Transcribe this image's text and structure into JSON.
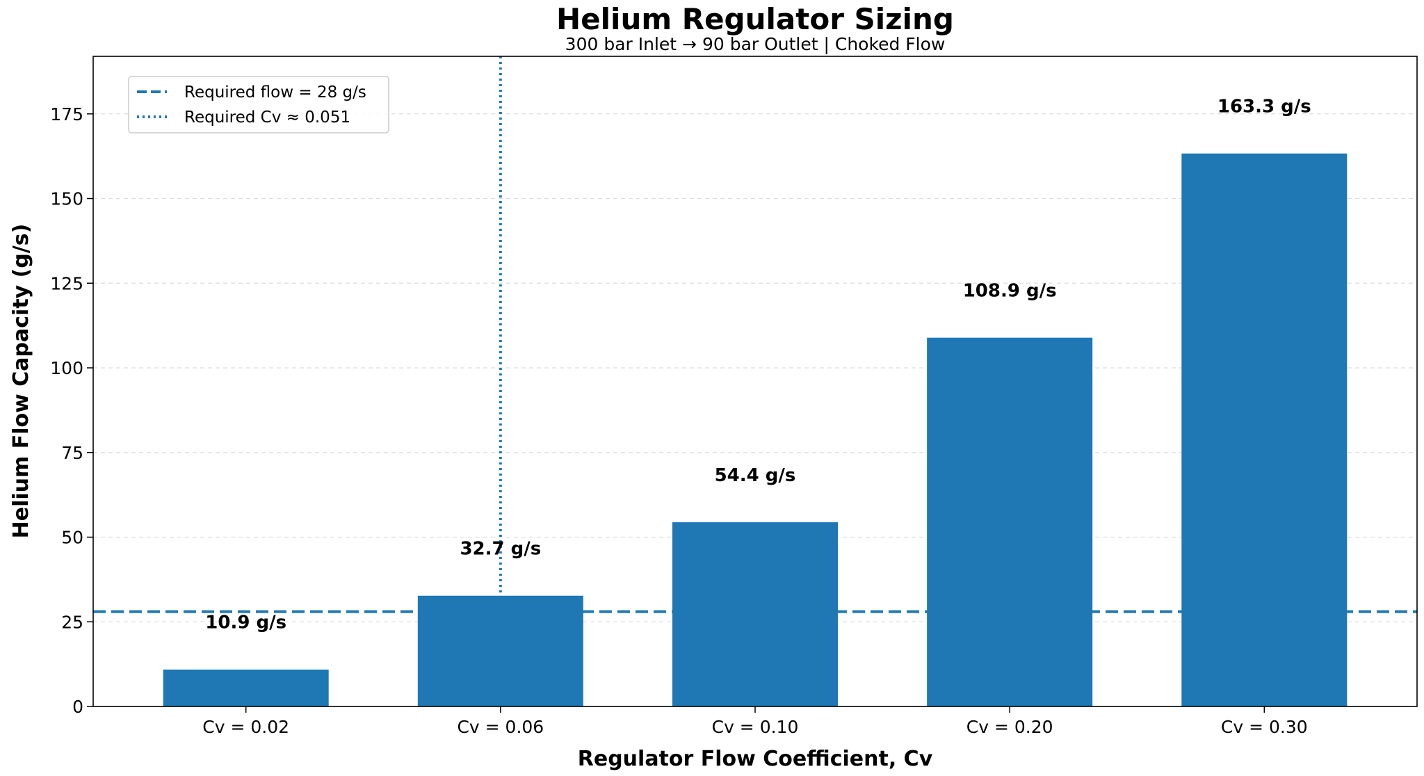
{
  "chart_data": {
    "type": "bar",
    "title": "Helium Regulator Sizing",
    "subtitle": "300 bar Inlet → 90 bar Outlet | Choked Flow",
    "xlabel": "Regulator Flow Coefficient, Cv",
    "ylabel": "Helium Flow Capacity (g/s)",
    "categories": [
      "Cv = 0.02",
      "Cv = 0.06",
      "Cv = 0.10",
      "Cv = 0.20",
      "Cv = 0.30"
    ],
    "values": [
      10.9,
      32.7,
      54.4,
      108.9,
      163.3
    ],
    "data_labels": [
      "10.9 g/s",
      "32.7 g/s",
      "54.4 g/s",
      "108.9 g/s",
      "163.3 g/s"
    ],
    "ylim": [
      0,
      192
    ],
    "yticks": [
      0,
      25,
      50,
      75,
      100,
      125,
      150,
      175
    ],
    "grid": "horizontal dashed",
    "bar_color": "#1f77b4",
    "reference_lines": [
      {
        "orientation": "horizontal",
        "value": 28,
        "style": "dashed",
        "color": "#1f77b4",
        "label": "Required flow = 28 g/s"
      },
      {
        "orientation": "vertical",
        "value": 0.051,
        "category_position": 1,
        "style": "dotted",
        "color": "#1f77b4",
        "label": "Required Cv ≈ 0.051"
      }
    ],
    "legend": {
      "position": "top-left",
      "entries": [
        "Required flow = 28 g/s",
        "Required Cv ≈ 0.051"
      ]
    }
  }
}
